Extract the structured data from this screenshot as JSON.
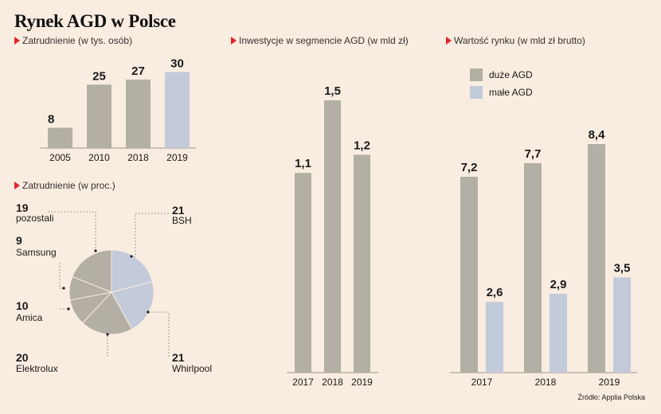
{
  "title": "Rynek AGD w Polsce",
  "source": "Źródło: Applia Polska",
  "colors": {
    "grey": "#b3afa4",
    "blue": "#c3cad9",
    "background": "#f9ece0",
    "accent": "#e3262b"
  },
  "chart_data": [
    {
      "type": "bar",
      "title": "Zatrudnienie (w tys. osób)",
      "categories": [
        "2005",
        "2010",
        "2018",
        "2019"
      ],
      "value_labels": [
        "8",
        "25",
        "27",
        "30"
      ],
      "values": [
        8,
        25,
        27,
        30
      ],
      "ylim": [
        0,
        32
      ],
      "highlight_index": 3
    },
    {
      "type": "pie",
      "title": "Zatrudnienie (w proc.)",
      "slices": [
        {
          "label": "BSH",
          "value": 21,
          "display": "21"
        },
        {
          "label": "Whirlpool",
          "value": 21,
          "display": "21"
        },
        {
          "label": "Elektrolux",
          "value": 20,
          "display": "20"
        },
        {
          "label": "Amica",
          "value": 10,
          "display": "10"
        },
        {
          "label": "Samsung",
          "value": 9,
          "display": "9"
        },
        {
          "label": "pozostali",
          "value": 19,
          "display": "19"
        }
      ]
    },
    {
      "type": "bar",
      "title": "Inwestycje w segmencie AGD (w mld zł)",
      "categories": [
        "2017",
        "2018",
        "2019"
      ],
      "value_labels": [
        "1,1",
        "1,5",
        "1,2"
      ],
      "values": [
        1.1,
        1.5,
        1.2
      ],
      "ylim": [
        0,
        1.6
      ]
    },
    {
      "type": "bar",
      "title": "Wartość rynku (w mld zł brutto)",
      "categories": [
        "2017",
        "2018",
        "2019"
      ],
      "series": [
        {
          "name": "duże AGD",
          "values": [
            7.2,
            7.7,
            8.4
          ],
          "value_labels": [
            "7,2",
            "7,7",
            "8,4"
          ]
        },
        {
          "name": "małe AGD",
          "values": [
            2.6,
            2.9,
            3.5
          ],
          "value_labels": [
            "2,6",
            "2,9",
            "3,5"
          ]
        }
      ],
      "ylim": [
        0,
        9.0
      ],
      "legend": "top-left"
    }
  ]
}
